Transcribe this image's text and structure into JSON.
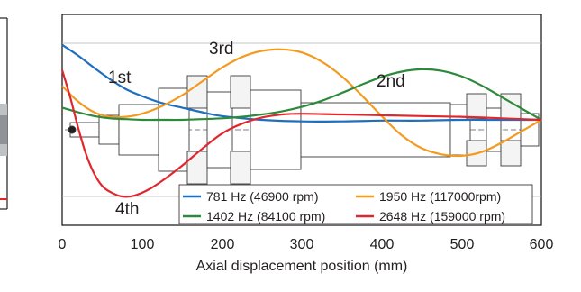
{
  "chart_data": {
    "type": "line",
    "xlabel": "Axial displacement position (mm)",
    "ylabel": "",
    "xlim": [
      0,
      600
    ],
    "ylim": [
      -1,
      1
    ],
    "x_ticks": [
      "0",
      "100",
      "200",
      "300",
      "400",
      "500",
      "600"
    ],
    "grid": true,
    "legend_position": "bottom-right",
    "series": [
      {
        "name": "781 Hz (46900 rpm)",
        "color": "#1e6fc0",
        "x": [
          0,
          20,
          40,
          60,
          80,
          100,
          125,
          150,
          175,
          200,
          250,
          300,
          350,
          400,
          450,
          500,
          550,
          600
        ],
        "y": [
          0.98,
          0.84,
          0.68,
          0.53,
          0.4,
          0.31,
          0.22,
          0.16,
          0.1,
          0.05,
          0.0,
          -0.02,
          -0.02,
          -0.01,
          -0.01,
          0.0,
          0.0,
          0.0
        ]
      },
      {
        "name": "1950 Hz (117000rpm)",
        "color": "#f39a1f",
        "x": [
          0,
          20,
          40,
          60,
          80,
          100,
          125,
          150,
          175,
          200,
          225,
          250,
          275,
          300,
          325,
          350,
          375,
          400,
          425,
          450,
          475,
          500,
          525,
          550,
          575,
          600
        ],
        "y": [
          0.44,
          0.24,
          0.1,
          0.04,
          0.04,
          0.08,
          0.18,
          0.32,
          0.5,
          0.68,
          0.82,
          0.9,
          0.92,
          0.88,
          0.76,
          0.57,
          0.32,
          0.05,
          -0.2,
          -0.37,
          -0.45,
          -0.47,
          -0.42,
          -0.3,
          -0.15,
          0.0
        ]
      },
      {
        "name": "1402 Hz (84100 rpm)",
        "color": "#2c8a3a",
        "x": [
          0,
          20,
          40,
          60,
          80,
          100,
          125,
          150,
          175,
          200,
          225,
          250,
          275,
          300,
          325,
          350,
          375,
          400,
          425,
          450,
          475,
          500,
          525,
          550,
          575,
          600
        ],
        "y": [
          0.16,
          0.1,
          0.05,
          0.02,
          0.01,
          0.0,
          0.0,
          0.0,
          0.01,
          0.02,
          0.04,
          0.07,
          0.11,
          0.17,
          0.25,
          0.35,
          0.46,
          0.56,
          0.63,
          0.66,
          0.64,
          0.57,
          0.45,
          0.3,
          0.15,
          0.0
        ]
      },
      {
        "name": "2648 Hz (159000 rpm)",
        "color": "#e0272d",
        "x": [
          0,
          10,
          20,
          30,
          40,
          50,
          60,
          75,
          90,
          110,
          130,
          150,
          175,
          200,
          225,
          250,
          275,
          300,
          350,
          400,
          450,
          500,
          550,
          600
        ],
        "y": [
          0.65,
          0.3,
          -0.1,
          -0.45,
          -0.7,
          -0.86,
          -0.94,
          -1.0,
          -0.99,
          -0.9,
          -0.76,
          -0.6,
          -0.38,
          -0.18,
          -0.05,
          0.03,
          0.07,
          0.08,
          0.07,
          0.06,
          0.05,
          0.04,
          0.02,
          0.0
        ]
      }
    ],
    "annotations": [
      {
        "text": "1st",
        "x": 100,
        "y": 0.58
      },
      {
        "text": "3rd",
        "x": 285,
        "y": 0.95
      },
      {
        "text": "2nd",
        "x": 470,
        "y": 0.55
      },
      {
        "text": "4th",
        "x": 140,
        "y": -1.08
      }
    ]
  },
  "legend": {
    "items": [
      {
        "label": "781 Hz (46900 rpm)",
        "color": "#1e6fc0"
      },
      {
        "label": "1950 Hz (117000rpm)",
        "color": "#f39a1f"
      },
      {
        "label": "1402 Hz (84100 rpm)",
        "color": "#2c8a3a"
      },
      {
        "label": "2648 Hz (159000 rpm)",
        "color": "#e0272d"
      }
    ]
  }
}
